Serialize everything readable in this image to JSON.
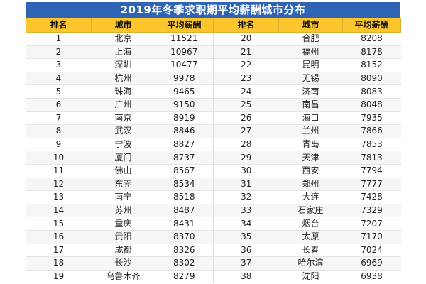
{
  "title": "2019年冬季求职期平均薪酬城市分布",
  "columns": {
    "rank": "排名",
    "city": "城市",
    "salary": "平均薪酬"
  },
  "left": [
    {
      "rank": "1",
      "city": "北京",
      "salary": "11521"
    },
    {
      "rank": "2",
      "city": "上海",
      "salary": "10967"
    },
    {
      "rank": "3",
      "city": "深圳",
      "salary": "10477"
    },
    {
      "rank": "4",
      "city": "杭州",
      "salary": "9978"
    },
    {
      "rank": "5",
      "city": "珠海",
      "salary": "9465"
    },
    {
      "rank": "6",
      "city": "广州",
      "salary": "9150"
    },
    {
      "rank": "7",
      "city": "南京",
      "salary": "8919"
    },
    {
      "rank": "8",
      "city": "武汉",
      "salary": "8846"
    },
    {
      "rank": "9",
      "city": "宁波",
      "salary": "8827"
    },
    {
      "rank": "10",
      "city": "厦门",
      "salary": "8737"
    },
    {
      "rank": "11",
      "city": "佛山",
      "salary": "8567"
    },
    {
      "rank": "12",
      "city": "东莞",
      "salary": "8534"
    },
    {
      "rank": "13",
      "city": "南宁",
      "salary": "8518"
    },
    {
      "rank": "14",
      "city": "苏州",
      "salary": "8487"
    },
    {
      "rank": "15",
      "city": "重庆",
      "salary": "8431"
    },
    {
      "rank": "16",
      "city": "贵阳",
      "salary": "8370"
    },
    {
      "rank": "17",
      "city": "成都",
      "salary": "8326"
    },
    {
      "rank": "18",
      "city": "长沙",
      "salary": "8302"
    },
    {
      "rank": "19",
      "city": "乌鲁木齐",
      "salary": "8279"
    }
  ],
  "right": [
    {
      "rank": "20",
      "city": "合肥",
      "salary": "8208"
    },
    {
      "rank": "21",
      "city": "福州",
      "salary": "8178"
    },
    {
      "rank": "22",
      "city": "昆明",
      "salary": "8152"
    },
    {
      "rank": "23",
      "city": "无锡",
      "salary": "8090"
    },
    {
      "rank": "24",
      "city": "济南",
      "salary": "8083"
    },
    {
      "rank": "25",
      "city": "南昌",
      "salary": "8048"
    },
    {
      "rank": "26",
      "city": "海口",
      "salary": "7935"
    },
    {
      "rank": "27",
      "city": "兰州",
      "salary": "7866"
    },
    {
      "rank": "28",
      "city": "青岛",
      "salary": "7853"
    },
    {
      "rank": "29",
      "city": "天津",
      "salary": "7813"
    },
    {
      "rank": "30",
      "city": "西安",
      "salary": "7794"
    },
    {
      "rank": "31",
      "city": "郑州",
      "salary": "7777"
    },
    {
      "rank": "32",
      "city": "大连",
      "salary": "7428"
    },
    {
      "rank": "33",
      "city": "石家庄",
      "salary": "7329"
    },
    {
      "rank": "34",
      "city": "烟台",
      "salary": "7207"
    },
    {
      "rank": "35",
      "city": "太原",
      "salary": "7170"
    },
    {
      "rank": "36",
      "city": "长春",
      "salary": "7024"
    },
    {
      "rank": "37",
      "city": "哈尔滨",
      "salary": "6969"
    },
    {
      "rank": "38",
      "city": "沈阳",
      "salary": "6938"
    }
  ],
  "colors": {
    "title_bg": "#2f64b5",
    "header_bg": "#fbc52b",
    "stripe": "#f6f6f6"
  }
}
